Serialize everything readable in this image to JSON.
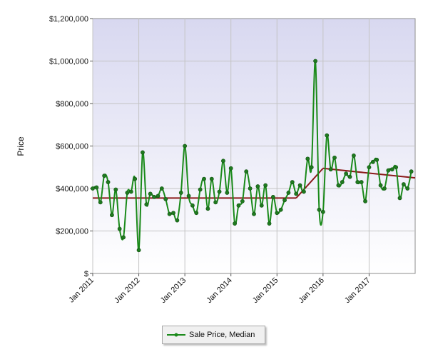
{
  "chart_data": {
    "type": "line",
    "ylabel": "Price",
    "xlabel": "",
    "ylim": [
      0,
      1200000
    ],
    "xlim": [
      "2011-01",
      "2018-01"
    ],
    "y_ticks": [
      0,
      200000,
      400000,
      600000,
      800000,
      1000000,
      1200000
    ],
    "y_tick_labels": [
      "$",
      "$200,000",
      "$400,000",
      "$600,000",
      "$800,000",
      "$1,000,000",
      "$1,200,000"
    ],
    "x_ticks": [
      "2011-01",
      "2012-01",
      "2013-01",
      "2014-01",
      "2015-01",
      "2016-01",
      "2017-01"
    ],
    "x_tick_labels": [
      "Jan 2011",
      "Jan 2012",
      "Jan 2013",
      "Jan 2014",
      "Jan 2015",
      "Jan 2016",
      "Jan 2017"
    ],
    "grid": true,
    "legend_position": "bottom-center",
    "series": [
      {
        "name": "Sale Price, Median",
        "color": "#1a8a1a",
        "x": [
          "2011-01",
          "2011-02",
          "2011-03",
          "2011-04",
          "2011-05",
          "2011-06",
          "2011-07",
          "2011-08",
          "2011-09",
          "2011-10",
          "2011-11",
          "2011-12",
          "2012-01",
          "2012-02",
          "2012-03",
          "2012-04",
          "2012-05",
          "2012-06",
          "2012-07",
          "2012-08",
          "2012-09",
          "2012-10",
          "2012-11",
          "2012-12",
          "2013-01",
          "2013-02",
          "2013-03",
          "2013-04",
          "2013-05",
          "2013-06",
          "2013-07",
          "2013-08",
          "2013-09",
          "2013-10",
          "2013-11",
          "2013-12",
          "2014-01",
          "2014-02",
          "2014-03",
          "2014-04",
          "2014-05",
          "2014-06",
          "2014-07",
          "2014-08",
          "2014-09",
          "2014-10",
          "2014-11",
          "2014-12",
          "2015-01",
          "2015-02",
          "2015-03",
          "2015-04",
          "2015-05",
          "2015-06",
          "2015-07",
          "2015-08",
          "2015-09",
          "2015-10",
          "2015-11",
          "2015-12",
          "2016-01",
          "2016-02",
          "2016-03",
          "2016-04",
          "2016-05",
          "2016-06",
          "2016-07",
          "2016-08",
          "2016-09",
          "2016-10",
          "2016-11",
          "2016-12",
          "2017-01",
          "2017-02",
          "2017-03",
          "2017-04",
          "2017-05",
          "2017-06",
          "2017-07",
          "2017-08",
          "2017-09",
          "2017-10",
          "2017-11",
          "2017-12"
        ],
        "values": [
          400000,
          405000,
          335000,
          460000,
          430000,
          275000,
          395000,
          210000,
          170000,
          380000,
          385000,
          445000,
          110000,
          570000,
          325000,
          375000,
          360000,
          365000,
          400000,
          350000,
          280000,
          285000,
          250000,
          380000,
          600000,
          365000,
          320000,
          285000,
          395000,
          445000,
          305000,
          445000,
          335000,
          385000,
          530000,
          380000,
          495000,
          235000,
          320000,
          340000,
          480000,
          400000,
          280000,
          410000,
          320000,
          415000,
          235000,
          360000,
          285000,
          300000,
          345000,
          380000,
          430000,
          375000,
          415000,
          385000,
          540000,
          500000,
          1000000,
          300000,
          290000,
          650000,
          490000,
          545000,
          415000,
          430000,
          470000,
          455000,
          555000,
          430000,
          430000,
          340000,
          500000,
          525000,
          535000,
          415000,
          400000,
          485000,
          490000,
          500000,
          355000,
          420000,
          400000,
          480000
        ]
      },
      {
        "name": "",
        "color": "#8b1a1a",
        "segments": [
          {
            "x": [
              "2011-01",
              "2015-06"
            ],
            "values": [
              355000,
              355000
            ]
          },
          {
            "x": [
              "2015-06",
              "2016-01"
            ],
            "values": [
              355000,
              495000
            ]
          },
          {
            "x": [
              "2016-01",
              "2018-01"
            ],
            "values": [
              495000,
              450000
            ]
          }
        ]
      }
    ]
  }
}
